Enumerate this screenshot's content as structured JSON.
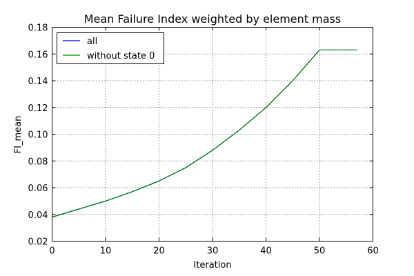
{
  "chart_data": {
    "type": "line",
    "title": "Mean Failure Index weighted by element mass",
    "xlabel": "Iteration",
    "ylabel": "FI_mean",
    "xlim": [
      0,
      60
    ],
    "ylim": [
      0.02,
      0.18
    ],
    "xticks": [
      "0",
      "10",
      "20",
      "30",
      "40",
      "50",
      "60"
    ],
    "yticks": [
      "0.02",
      "0.04",
      "0.06",
      "0.08",
      "0.10",
      "0.12",
      "0.14",
      "0.16",
      "0.18"
    ],
    "grid": true,
    "legend_position": "top-left",
    "x": [
      0,
      5,
      10,
      15,
      20,
      25,
      30,
      35,
      40,
      45,
      50,
      51,
      57
    ],
    "series": [
      {
        "name": "all",
        "color": "#0000ff",
        "values": [
          0.038,
          0.044,
          0.05,
          0.057,
          0.065,
          0.075,
          0.088,
          0.103,
          0.12,
          0.14,
          0.163,
          0.163,
          0.163
        ]
      },
      {
        "name": "without state 0",
        "color": "#008000",
        "values": [
          0.038,
          0.044,
          0.05,
          0.057,
          0.065,
          0.075,
          0.088,
          0.103,
          0.12,
          0.14,
          0.163,
          0.163,
          0.163
        ]
      }
    ]
  }
}
